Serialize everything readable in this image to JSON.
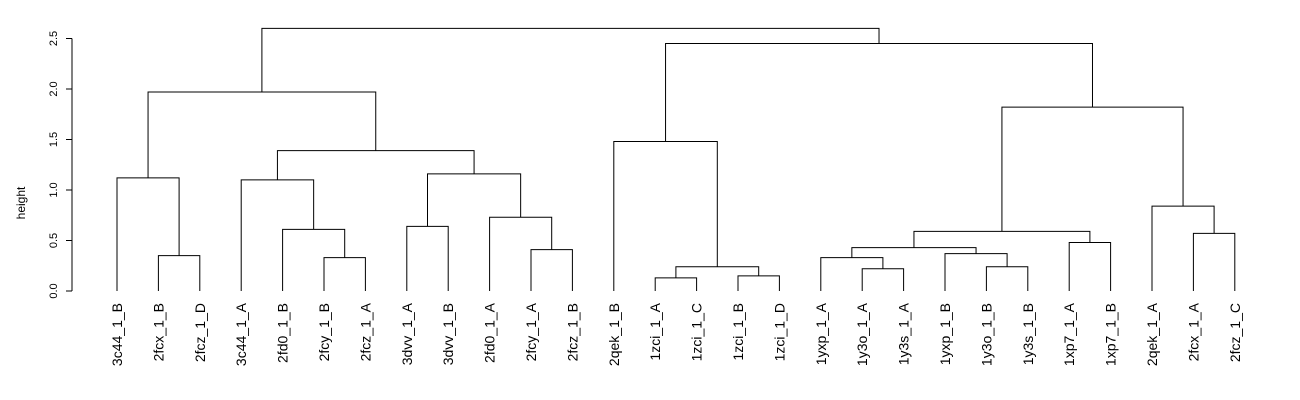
{
  "chart_data": {
    "type": "dendrogram",
    "title": "",
    "xlabel": "",
    "ylabel": "height",
    "ylim": [
      0,
      2.6
    ],
    "y_ticks": [
      "0.0",
      "0.5",
      "1.0",
      "1.5",
      "2.0",
      "2.5"
    ],
    "grid": false,
    "legend": "none",
    "leaves": [
      "3c44_1_B",
      "2fcx_1_B",
      "2fcz_1_D",
      "3c44_1_A",
      "2fd0_1_B",
      "2fcy_1_B",
      "2fcz_1_A",
      "3dvv_1_A",
      "3dvv_1_B",
      "2fd0_1_A",
      "2fcy_1_A",
      "2fcz_1_B",
      "2qek_1_B",
      "1zci_1_A",
      "1zci_1_C",
      "1zci_1_B",
      "1zci_1_D",
      "1yxp_1_A",
      "1y3o_1_A",
      "1y3s_1_A",
      "1yxp_1_B",
      "1y3o_1_B",
      "1y3s_1_B",
      "1xp7_1_A",
      "1xp7_1_B",
      "2qek_1_A",
      "2fcx_1_A",
      "2fcz_1_C"
    ],
    "merges": [
      {
        "left": "2fcx_1_B",
        "right": "2fcz_1_D",
        "height": 0.35
      },
      {
        "left": "3c44_1_B",
        "right": "m1",
        "height": 1.12
      },
      {
        "left": "2fcy_1_B",
        "right": "2fcz_1_A",
        "height": 0.33
      },
      {
        "left": "2fd0_1_B",
        "right": "m3",
        "height": 0.61
      },
      {
        "left": "3c44_1_A",
        "right": "m4",
        "height": 1.1
      },
      {
        "left": "3dvv_1_A",
        "right": "3dvv_1_B",
        "height": 0.64
      },
      {
        "left": "2fcy_1_A",
        "right": "2fcz_1_B",
        "height": 0.41
      },
      {
        "left": "2fd0_1_A",
        "right": "m7",
        "height": 0.73
      },
      {
        "left": "m6",
        "right": "m8",
        "height": 1.16
      },
      {
        "left": "m5",
        "right": "m9",
        "height": 1.39
      },
      {
        "left": "m2",
        "right": "m10",
        "height": 1.97
      },
      {
        "left": "1zci_1_A",
        "right": "1zci_1_C",
        "height": 0.13
      },
      {
        "left": "1zci_1_B",
        "right": "1zci_1_D",
        "height": 0.15
      },
      {
        "left": "m12",
        "right": "m13",
        "height": 0.24
      },
      {
        "left": "2qek_1_B",
        "right": "m14",
        "height": 1.48
      },
      {
        "left": "1y3o_1_A",
        "right": "1y3s_1_A",
        "height": 0.22
      },
      {
        "left": "1yxp_1_A",
        "right": "m16",
        "height": 0.33
      },
      {
        "left": "1y3o_1_B",
        "right": "1y3s_1_B",
        "height": 0.24
      },
      {
        "left": "1yxp_1_B",
        "right": "m18",
        "height": 0.37
      },
      {
        "left": "m17",
        "right": "m19",
        "height": 0.43
      },
      {
        "left": "1xp7_1_A",
        "right": "1xp7_1_B",
        "height": 0.48
      },
      {
        "left": "m20",
        "right": "m21",
        "height": 0.59
      },
      {
        "left": "2fcx_1_A",
        "right": "2fcz_1_C",
        "height": 0.57
      },
      {
        "left": "2qek_1_A",
        "right": "m23",
        "height": 0.84
      },
      {
        "left": "m22",
        "right": "m24",
        "height": 1.82
      },
      {
        "left": "m15",
        "right": "m25",
        "height": 2.45
      },
      {
        "left": "m11",
        "right": "m26",
        "height": 2.6
      }
    ]
  }
}
